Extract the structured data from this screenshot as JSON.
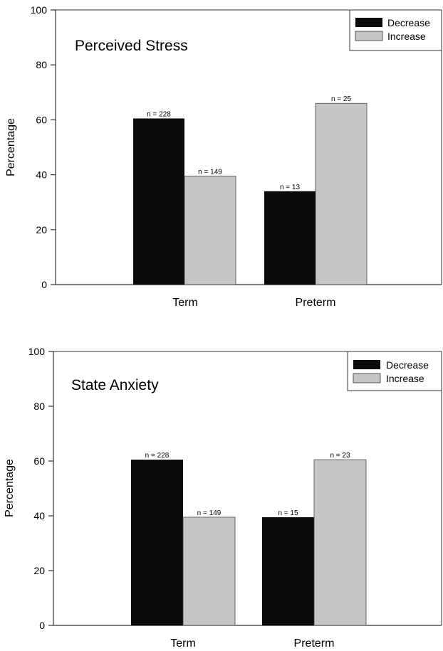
{
  "colors": {
    "decrease": "#0a0a0a",
    "increase": "#c6c6c6",
    "axis": "#333333"
  },
  "chart_data": [
    {
      "type": "bar",
      "title": "Perceived Stress",
      "xlabel": "",
      "ylabel": "Percentage",
      "ylim": [
        0,
        100
      ],
      "yticks": [
        "0",
        "20",
        "40",
        "60",
        "80",
        "100"
      ],
      "categories": [
        "Term",
        "Preterm"
      ],
      "series": [
        {
          "name": "Decrease",
          "values": [
            60.5,
            34
          ],
          "labels": [
            "n = 228",
            "n = 13"
          ]
        },
        {
          "name": "Increase",
          "values": [
            39.5,
            66
          ],
          "labels": [
            "n = 149",
            "n = 25"
          ]
        }
      ],
      "legend": "top-right",
      "grid": false
    },
    {
      "type": "bar",
      "title": "State Anxiety",
      "xlabel": "",
      "ylabel": "Percentage",
      "ylim": [
        0,
        100
      ],
      "yticks": [
        "0",
        "20",
        "40",
        "60",
        "80",
        "100"
      ],
      "categories": [
        "Term",
        "Preterm"
      ],
      "series": [
        {
          "name": "Decrease",
          "values": [
            60.5,
            39.5
          ],
          "labels": [
            "n = 228",
            "n = 15"
          ]
        },
        {
          "name": "Increase",
          "values": [
            39.5,
            60.5
          ],
          "labels": [
            "n = 149",
            "n = 23"
          ]
        }
      ],
      "legend": "top-right",
      "grid": false
    }
  ]
}
